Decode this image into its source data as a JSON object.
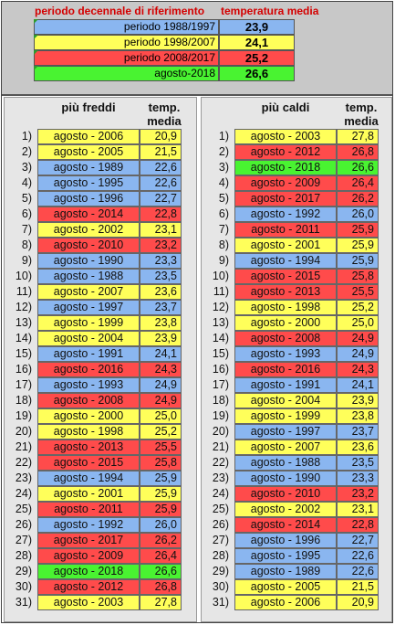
{
  "header": {
    "col1": "periodo decennale di riferimento",
    "col2": "temperatura media"
  },
  "reference": [
    {
      "label": "periodo 1988/1997",
      "value": "23,9",
      "color": "#8ab6f0"
    },
    {
      "label": "periodo 1998/2007",
      "value": "24,1",
      "color": "#ffff5a"
    },
    {
      "label": "periodo 2008/2017",
      "value": "25,2",
      "color": "#ff4b4b"
    },
    {
      "label": "agosto-2018",
      "value": "26,6",
      "color": "#49f331"
    }
  ],
  "colors": {
    "2006": "#ffff5a",
    "2003": "#ffff5a",
    "2005": "#ffff5a",
    "2002": "#ffff5a",
    "2000": "#ffff5a",
    "1999": "#ffff5a",
    "2001": "#ffff5a",
    "2004": "#ffff5a",
    "1998": "#ffff5a",
    "2007": "#ffff5a",
    "1988": "#8ab6f0",
    "1989": "#8ab6f0",
    "1990": "#8ab6f0",
    "1991": "#8ab6f0",
    "1992": "#8ab6f0",
    "1993": "#8ab6f0",
    "1994": "#8ab6f0",
    "1995": "#8ab6f0",
    "1996": "#8ab6f0",
    "1997": "#8ab6f0",
    "2008": "#ff4b4b",
    "2009": "#ff4b4b",
    "2010": "#ff4b4b",
    "2011": "#ff4b4b",
    "2012": "#ff4b4b",
    "2013": "#ff4b4b",
    "2014": "#ff4b4b",
    "2015": "#ff4b4b",
    "2016": "#ff4b4b",
    "2017": "#ff4b4b",
    "2018": "#49f331"
  },
  "left": {
    "title": "più freddi",
    "value_header": [
      "temp.",
      "media"
    ],
    "rows": [
      {
        "n": "1)",
        "label": "agosto - 2006",
        "value": "20,9"
      },
      {
        "n": "2)",
        "label": "agosto - 2005",
        "value": "21,5"
      },
      {
        "n": "3)",
        "label": "agosto - 1989",
        "value": "22,6"
      },
      {
        "n": "4)",
        "label": "agosto - 1995",
        "value": "22,6"
      },
      {
        "n": "5)",
        "label": "agosto - 1996",
        "value": "22,7"
      },
      {
        "n": "6)",
        "label": "agosto - 2014",
        "value": "22,8"
      },
      {
        "n": "7)",
        "label": "agosto - 2002",
        "value": "23,1"
      },
      {
        "n": "8)",
        "label": "agosto - 2010",
        "value": "23,2"
      },
      {
        "n": "9)",
        "label": "agosto - 1990",
        "value": "23,3"
      },
      {
        "n": "10)",
        "label": "agosto - 1988",
        "value": "23,5"
      },
      {
        "n": "11)",
        "label": "agosto - 2007",
        "value": "23,6"
      },
      {
        "n": "12)",
        "label": "agosto - 1997",
        "value": "23,7"
      },
      {
        "n": "13)",
        "label": "agosto - 1999",
        "value": "23,8"
      },
      {
        "n": "14)",
        "label": "agosto - 2004",
        "value": "23,9"
      },
      {
        "n": "15)",
        "label": "agosto - 1991",
        "value": "24,1"
      },
      {
        "n": "16)",
        "label": "agosto - 2016",
        "value": "24,3"
      },
      {
        "n": "17)",
        "label": "agosto - 1993",
        "value": "24,9"
      },
      {
        "n": "18)",
        "label": "agosto - 2008",
        "value": "24,9"
      },
      {
        "n": "19)",
        "label": "agosto - 2000",
        "value": "25,0"
      },
      {
        "n": "20)",
        "label": "agosto - 1998",
        "value": "25,2"
      },
      {
        "n": "21)",
        "label": "agosto - 2013",
        "value": "25,5"
      },
      {
        "n": "22)",
        "label": "agosto - 2015",
        "value": "25,8"
      },
      {
        "n": "23)",
        "label": "agosto - 1994",
        "value": "25,9"
      },
      {
        "n": "24)",
        "label": "agosto - 2001",
        "value": "25,9"
      },
      {
        "n": "25)",
        "label": "agosto - 2011",
        "value": "25,9"
      },
      {
        "n": "26)",
        "label": "agosto - 1992",
        "value": "26,0"
      },
      {
        "n": "27)",
        "label": "agosto - 2017",
        "value": "26,2"
      },
      {
        "n": "28)",
        "label": "agosto - 2009",
        "value": "26,4"
      },
      {
        "n": "29)",
        "label": "agosto - 2018",
        "value": "26,6"
      },
      {
        "n": "30)",
        "label": "agosto - 2012",
        "value": "26,8"
      },
      {
        "n": "31)",
        "label": "agosto - 2003",
        "value": "27,8"
      }
    ]
  },
  "right": {
    "title": "più caldi",
    "value_header": [
      "temp.",
      "media"
    ],
    "rows": [
      {
        "n": "1)",
        "label": "agosto - 2003",
        "value": "27,8"
      },
      {
        "n": "2)",
        "label": "agosto - 2012",
        "value": "26,8"
      },
      {
        "n": "3)",
        "label": "agosto - 2018",
        "value": "26,6"
      },
      {
        "n": "4)",
        "label": "agosto - 2009",
        "value": "26,4"
      },
      {
        "n": "5)",
        "label": "agosto - 2017",
        "value": "26,2"
      },
      {
        "n": "6)",
        "label": "agosto - 1992",
        "value": "26,0"
      },
      {
        "n": "7)",
        "label": "agosto - 2011",
        "value": "25,9"
      },
      {
        "n": "8)",
        "label": "agosto - 2001",
        "value": "25,9"
      },
      {
        "n": "9)",
        "label": "agosto - 1994",
        "value": "25,9"
      },
      {
        "n": "10)",
        "label": "agosto - 2015",
        "value": "25,8"
      },
      {
        "n": "11)",
        "label": "agosto - 2013",
        "value": "25,5"
      },
      {
        "n": "12)",
        "label": "agosto - 1998",
        "value": "25,2"
      },
      {
        "n": "13)",
        "label": "agosto - 2000",
        "value": "25,0"
      },
      {
        "n": "14)",
        "label": "agosto - 2008",
        "value": "24,9"
      },
      {
        "n": "15)",
        "label": "agosto - 1993",
        "value": "24,9"
      },
      {
        "n": "16)",
        "label": "agosto - 2016",
        "value": "24,3"
      },
      {
        "n": "17)",
        "label": "agosto - 1991",
        "value": "24,1"
      },
      {
        "n": "18)",
        "label": "agosto - 2004",
        "value": "23,9"
      },
      {
        "n": "19)",
        "label": "agosto - 1999",
        "value": "23,8"
      },
      {
        "n": "20)",
        "label": "agosto - 1997",
        "value": "23,7"
      },
      {
        "n": "21)",
        "label": "agosto - 2007",
        "value": "23,6"
      },
      {
        "n": "22)",
        "label": "agosto - 1988",
        "value": "23,5"
      },
      {
        "n": "23)",
        "label": "agosto - 1990",
        "value": "23,3"
      },
      {
        "n": "24)",
        "label": "agosto - 2010",
        "value": "23,2"
      },
      {
        "n": "25)",
        "label": "agosto - 2002",
        "value": "23,1"
      },
      {
        "n": "26)",
        "label": "agosto - 2014",
        "value": "22,8"
      },
      {
        "n": "27)",
        "label": "agosto - 1996",
        "value": "22,7"
      },
      {
        "n": "28)",
        "label": "agosto - 1995",
        "value": "22,6"
      },
      {
        "n": "29)",
        "label": "agosto - 1989",
        "value": "22,6"
      },
      {
        "n": "30)",
        "label": "agosto - 2005",
        "value": "21,5"
      },
      {
        "n": "31)",
        "label": "agosto - 2006",
        "value": "20,9"
      }
    ]
  }
}
